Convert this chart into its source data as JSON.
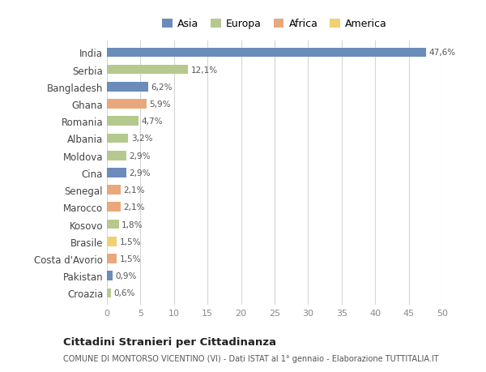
{
  "countries": [
    "India",
    "Serbia",
    "Bangladesh",
    "Ghana",
    "Romania",
    "Albania",
    "Moldova",
    "Cina",
    "Senegal",
    "Marocco",
    "Kosovo",
    "Brasile",
    "Costa d'Avorio",
    "Pakistan",
    "Croazia"
  ],
  "values": [
    47.6,
    12.1,
    6.2,
    5.9,
    4.7,
    3.2,
    2.9,
    2.9,
    2.1,
    2.1,
    1.8,
    1.5,
    1.5,
    0.9,
    0.6
  ],
  "labels": [
    "47,6%",
    "12,1%",
    "6,2%",
    "5,9%",
    "4,7%",
    "3,2%",
    "2,9%",
    "2,9%",
    "2,1%",
    "2,1%",
    "1,8%",
    "1,5%",
    "1,5%",
    "0,9%",
    "0,6%"
  ],
  "continents": [
    "Asia",
    "Europa",
    "Asia",
    "Africa",
    "Europa",
    "Europa",
    "Europa",
    "Asia",
    "Africa",
    "Africa",
    "Europa",
    "America",
    "Africa",
    "Asia",
    "Europa"
  ],
  "colors": {
    "Asia": "#6b8cba",
    "Europa": "#b5c98e",
    "Africa": "#e8a87c",
    "America": "#f0d070"
  },
  "legend_order": [
    "Asia",
    "Europa",
    "Africa",
    "America"
  ],
  "xlim": [
    0,
    50
  ],
  "xticks": [
    0,
    5,
    10,
    15,
    20,
    25,
    30,
    35,
    40,
    45,
    50
  ],
  "title": "Cittadini Stranieri per Cittadinanza",
  "subtitle": "COMUNE DI MONTORSO VICENTINO (VI) - Dati ISTAT al 1° gennaio - Elaborazione TUTTITALIA.IT",
  "bg_color": "#ffffff",
  "grid_color": "#d5d5d5"
}
